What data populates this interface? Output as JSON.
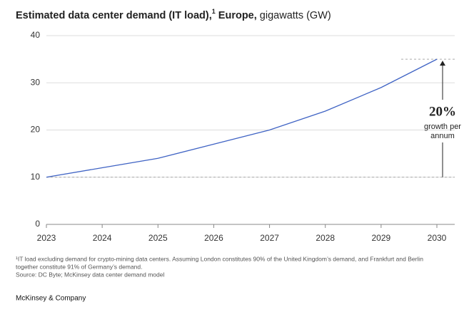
{
  "chart_data": {
    "type": "line",
    "title": {
      "bold": "Estimated data center demand (IT load),",
      "sup": "1",
      "bold2": " Europe,",
      "rest": " gigawatts (GW)"
    },
    "categories": [
      "2023",
      "2024",
      "2025",
      "2026",
      "2027",
      "2028",
      "2029",
      "2030"
    ],
    "values": [
      10,
      12,
      14,
      17,
      20,
      24,
      29,
      35
    ],
    "color": "#3f63c4",
    "ylim": [
      0,
      40
    ],
    "yticks": [
      0,
      10,
      20,
      30,
      40
    ],
    "grid": true,
    "annotation": {
      "value": "20%",
      "text": [
        "growth per",
        "annum"
      ]
    },
    "footnotes": [
      "¹IT load excluding demand for crypto-mining data centers. Assuming London constitutes 90% of the United Kingdom’s demand, and Frankfurt and Berlin",
      " together constitute 91% of Germany’s demand.",
      "Source: DC Byte; McKinsey data center demand model"
    ],
    "brand": "McKinsey & Company"
  }
}
